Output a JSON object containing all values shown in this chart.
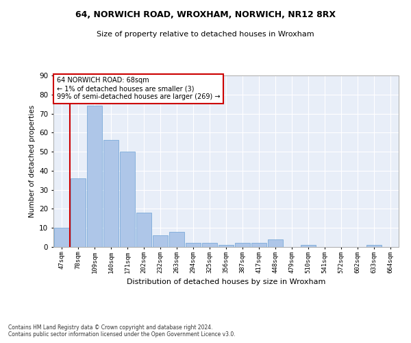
{
  "title1": "64, NORWICH ROAD, WROXHAM, NORWICH, NR12 8RX",
  "title2": "Size of property relative to detached houses in Wroxham",
  "xlabel": "Distribution of detached houses by size in Wroxham",
  "ylabel": "Number of detached properties",
  "categories": [
    "47sqm",
    "78sqm",
    "109sqm",
    "140sqm",
    "171sqm",
    "202sqm",
    "232sqm",
    "263sqm",
    "294sqm",
    "325sqm",
    "356sqm",
    "387sqm",
    "417sqm",
    "448sqm",
    "479sqm",
    "510sqm",
    "541sqm",
    "572sqm",
    "602sqm",
    "633sqm",
    "664sqm"
  ],
  "values": [
    10,
    36,
    74,
    56,
    50,
    18,
    6,
    8,
    2,
    2,
    1,
    2,
    2,
    4,
    0,
    1,
    0,
    0,
    0,
    1,
    0
  ],
  "bar_color": "#aec6e8",
  "bar_edge_color": "#6aa0d4",
  "highlight_line_color": "#cc0000",
  "ylim": [
    0,
    90
  ],
  "yticks": [
    0,
    10,
    20,
    30,
    40,
    50,
    60,
    70,
    80,
    90
  ],
  "bg_color": "#e8eef8",
  "grid_color": "#ffffff",
  "annotation_box_text": "64 NORWICH ROAD: 68sqm\n← 1% of detached houses are smaller (3)\n99% of semi-detached houses are larger (269) →",
  "annotation_box_color": "#cc0000",
  "footer_text": "Contains HM Land Registry data © Crown copyright and database right 2024.\nContains public sector information licensed under the Open Government Licence v3.0."
}
